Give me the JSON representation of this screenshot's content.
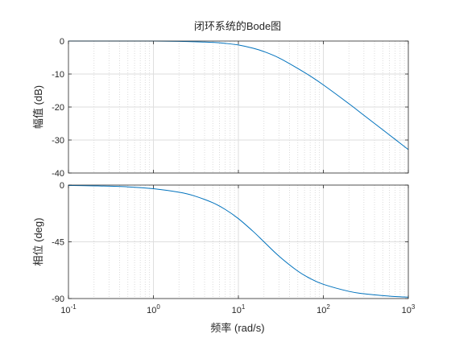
{
  "chart_data": {
    "type": "line",
    "title": "闭环系统的Bode图",
    "xlabel": "频率  (rad/s)",
    "x_scale": "log",
    "xlim": [
      0.1,
      1000
    ],
    "x_tick_labels": [
      {
        "base": "10",
        "exp": "-1"
      },
      {
        "base": "10",
        "exp": "0"
      },
      {
        "base": "10",
        "exp": "1"
      },
      {
        "base": "10",
        "exp": "2"
      },
      {
        "base": "10",
        "exp": "3"
      }
    ],
    "grid": true,
    "legend": "none",
    "color": "#0072BD",
    "panels": [
      {
        "name": "magnitude",
        "ylabel": "幅值 (dB)",
        "ylim": [
          -40,
          0
        ],
        "yticks": [
          0,
          -10,
          -20,
          -30,
          -40
        ],
        "ytick_labels": [
          "0",
          "-10",
          "-20",
          "-30",
          "-40"
        ],
        "x": [
          0.1,
          0.2,
          0.5,
          1,
          2,
          3,
          5,
          7,
          10,
          15,
          20,
          30,
          50,
          70,
          100,
          200,
          300,
          500,
          700,
          1000
        ],
        "y": [
          0,
          0,
          0,
          0,
          -0.1,
          -0.2,
          -0.4,
          -0.7,
          -1.2,
          -2.2,
          -3.2,
          -5.1,
          -8.3,
          -10.6,
          -13.3,
          -19.0,
          -22.5,
          -26.9,
          -29.8,
          -32.9
        ]
      },
      {
        "name": "phase",
        "ylabel": "相位 (deg)",
        "ylim": [
          -90,
          0
        ],
        "yticks": [
          0,
          -45,
          -90
        ],
        "ytick_labels": [
          "0",
          "-45",
          "-90"
        ],
        "x": [
          0.1,
          0.2,
          0.5,
          1,
          2,
          3,
          5,
          7,
          10,
          15,
          20,
          30,
          50,
          70,
          100,
          200,
          300,
          500,
          700,
          1000
        ],
        "y": [
          -0.3,
          -0.6,
          -1.4,
          -2.9,
          -5.7,
          -8.5,
          -14.0,
          -19.3,
          -26.6,
          -36.9,
          -45.0,
          -56.3,
          -68.2,
          -74.1,
          -78.7,
          -84.3,
          -86.2,
          -87.7,
          -88.4,
          -88.9
        ]
      }
    ]
  }
}
